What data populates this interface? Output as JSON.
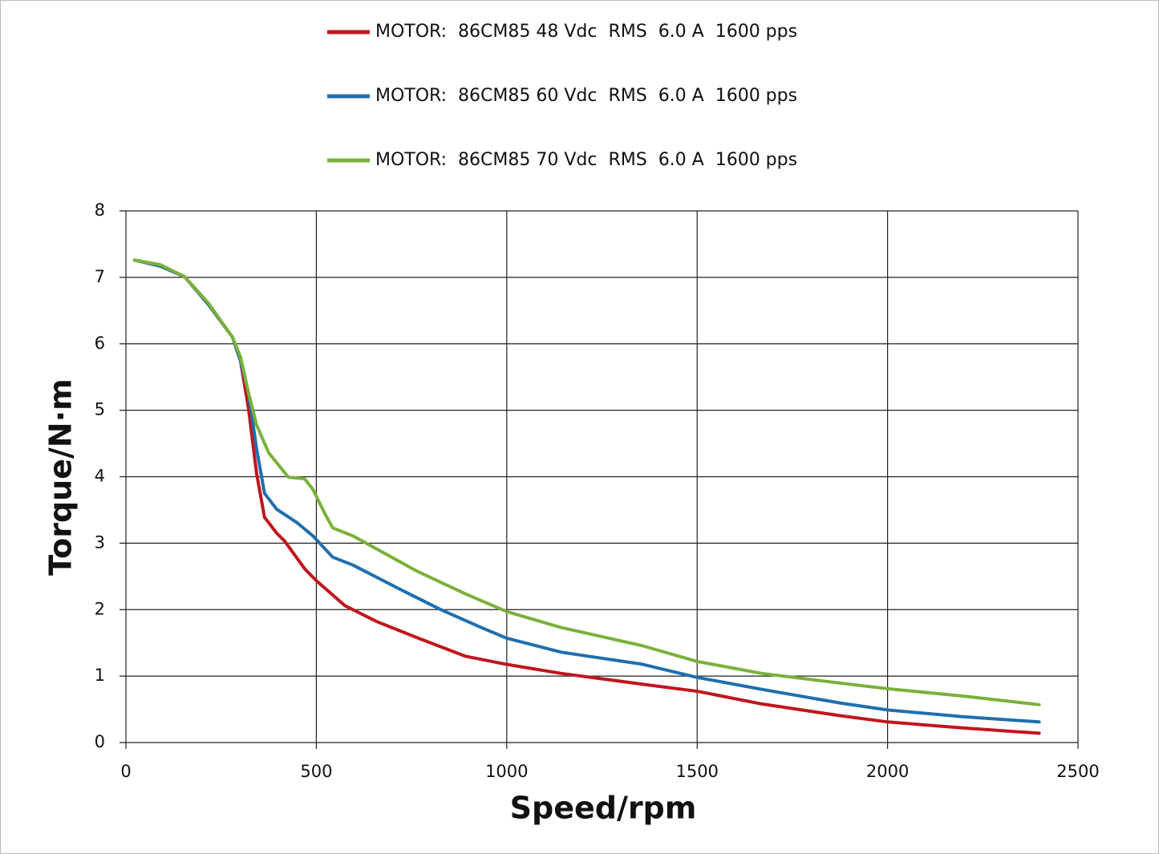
{
  "chart_data": {
    "type": "line",
    "x_label": "Speed/rpm",
    "y_label": "Torque/N·m",
    "xlim": [
      0,
      2500
    ],
    "xticks": [
      0,
      500,
      1000,
      1500,
      2000,
      2500
    ],
    "ylim": [
      0,
      8
    ],
    "yticks": [
      0,
      1,
      2,
      3,
      4,
      5,
      6,
      7,
      8
    ],
    "grid": true,
    "legend": "top",
    "series": [
      {
        "name": "MOTOR:  86CM85 48 Vdc  RMS  6.0 A  1600 pps",
        "color": "#c0161d",
        "x": [
          23,
          90,
          154,
          217,
          280,
          301,
          322,
          343,
          364,
          396,
          417,
          470,
          501,
          575,
          659,
          764,
          891,
          996,
          1143,
          1354,
          1502,
          1670,
          1881,
          2000,
          2197,
          2398
        ],
        "values": [
          7.26,
          7.17,
          7.01,
          6.59,
          6.1,
          5.74,
          5.02,
          4.05,
          3.39,
          3.15,
          3.03,
          2.61,
          2.43,
          2.06,
          1.82,
          1.58,
          1.3,
          1.18,
          1.04,
          0.88,
          0.77,
          0.58,
          0.4,
          0.31,
          0.22,
          0.14
        ]
      },
      {
        "name": "MOTOR:  86CM85 60 Vdc  RMS  6.0 A  1600 pps",
        "color": "#1f6fae",
        "x": [
          23,
          90,
          154,
          217,
          280,
          301,
          322,
          343,
          364,
          396,
          449,
          491,
          543,
          596,
          722,
          827,
          933,
          1000,
          1143,
          1354,
          1500,
          1670,
          1881,
          2000,
          2197,
          2398
        ],
        "values": [
          7.26,
          7.17,
          7.01,
          6.59,
          6.1,
          5.74,
          5.26,
          4.42,
          3.75,
          3.51,
          3.31,
          3.11,
          2.79,
          2.67,
          2.3,
          2.0,
          1.73,
          1.57,
          1.36,
          1.18,
          0.98,
          0.8,
          0.59,
          0.49,
          0.39,
          0.31
        ]
      },
      {
        "name": "MOTOR:  86CM85 70 Vdc  RMS  6.0 A  1600 pps",
        "color": "#7ab13b",
        "x": [
          23,
          90,
          154,
          217,
          280,
          301,
          322,
          343,
          375,
          427,
          469,
          491,
          522,
          543,
          596,
          659,
          764,
          891,
          1000,
          1143,
          1354,
          1500,
          1670,
          1881,
          2000,
          2197,
          2398
        ],
        "values": [
          7.26,
          7.19,
          7.01,
          6.61,
          6.1,
          5.8,
          5.26,
          4.78,
          4.36,
          3.99,
          3.97,
          3.81,
          3.45,
          3.23,
          3.11,
          2.91,
          2.58,
          2.24,
          1.97,
          1.73,
          1.46,
          1.22,
          1.04,
          0.89,
          0.81,
          0.7,
          0.57
        ]
      }
    ]
  }
}
